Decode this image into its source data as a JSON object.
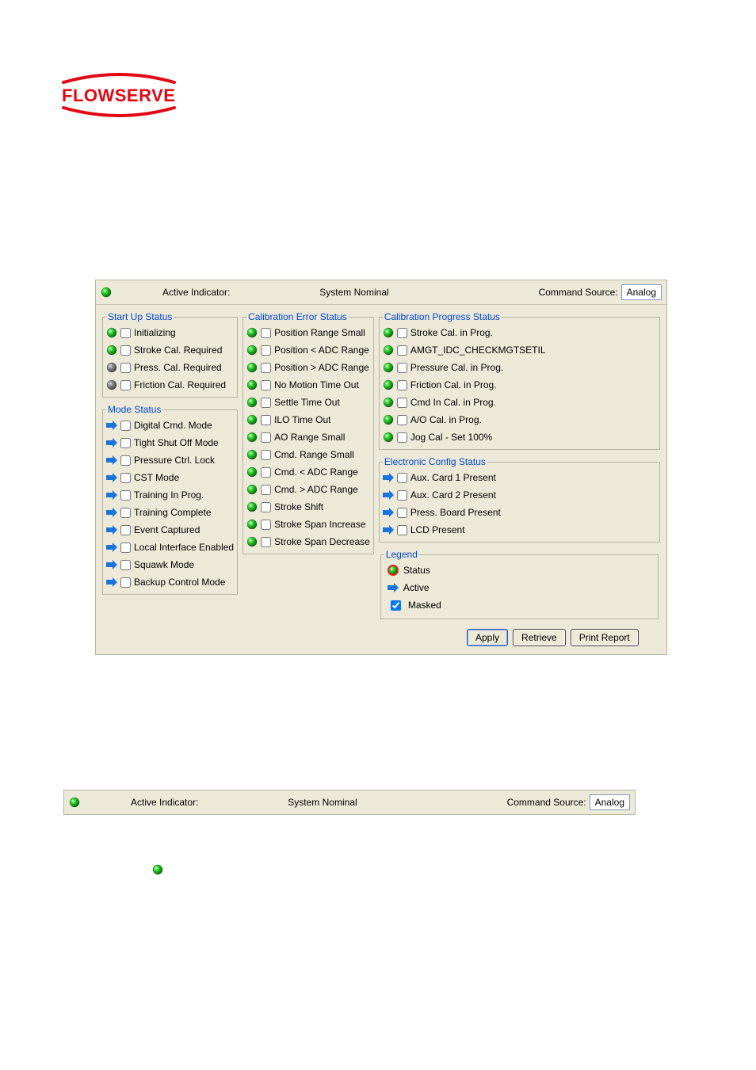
{
  "colors": {
    "panel_bg": "#ece9d8",
    "panel_border": "#b5b5a5",
    "group_title": "#0046d5",
    "led_green": "#2fd12f",
    "led_green_core": "#9bff9b",
    "led_red": "#e02020",
    "led_red_core": "#ff9b9b",
    "led_gray": "#8a8a8a",
    "led_gray_core": "#d0d0d0",
    "arrow_blue": "#1b74d8",
    "input_border": "#7f9db9",
    "brand_red": "#e30613"
  },
  "logo_text": "FLOWSERVE",
  "header": {
    "lead_led_color": "green",
    "active_indicator_label": "Active Indicator:",
    "active_indicator_value": "System Nominal",
    "command_source_label": "Command Source:",
    "command_source_value": "Analog"
  },
  "groups": {
    "startup": {
      "title": "Start Up Status",
      "items": [
        {
          "icon": "led",
          "color": "green",
          "checked": false,
          "label": "Initializing"
        },
        {
          "icon": "led",
          "color": "green",
          "checked": false,
          "label": "Stroke Cal. Required"
        },
        {
          "icon": "led",
          "color": "gray",
          "checked": false,
          "label": "Press. Cal. Required"
        },
        {
          "icon": "led",
          "color": "gray",
          "checked": false,
          "label": "Friction Cal. Required"
        }
      ]
    },
    "mode": {
      "title": "Mode Status",
      "items": [
        {
          "icon": "arrow",
          "checked": false,
          "label": "Digital Cmd. Mode"
        },
        {
          "icon": "arrow",
          "checked": false,
          "label": "Tight Shut Off Mode"
        },
        {
          "icon": "arrow",
          "checked": false,
          "label": "Pressure Ctrl. Lock"
        },
        {
          "icon": "arrow",
          "checked": false,
          "label": "CST Mode"
        },
        {
          "icon": "arrow",
          "checked": false,
          "label": "Training In Prog."
        },
        {
          "icon": "arrow",
          "checked": false,
          "label": "Training Complete"
        },
        {
          "icon": "arrow",
          "checked": false,
          "label": "Event Captured"
        },
        {
          "icon": "arrow",
          "checked": false,
          "label": "Local Interface Enabled"
        },
        {
          "icon": "arrow",
          "checked": false,
          "label": "Squawk Mode"
        },
        {
          "icon": "arrow",
          "checked": false,
          "label": "Backup Control Mode"
        }
      ]
    },
    "cal_error": {
      "title": "Calibration Error Status",
      "items": [
        {
          "icon": "led",
          "color": "green",
          "checked": false,
          "label": "Position Range Small"
        },
        {
          "icon": "led",
          "color": "green",
          "checked": false,
          "label": "Position < ADC Range"
        },
        {
          "icon": "led",
          "color": "green",
          "checked": false,
          "label": "Position > ADC Range"
        },
        {
          "icon": "led",
          "color": "green",
          "checked": false,
          "label": "No Motion Time Out"
        },
        {
          "icon": "led",
          "color": "green",
          "checked": false,
          "label": "Settle Time Out"
        },
        {
          "icon": "led",
          "color": "green",
          "checked": false,
          "label": "ILO Time Out"
        },
        {
          "icon": "led",
          "color": "green",
          "checked": false,
          "label": "AO Range Small"
        },
        {
          "icon": "led",
          "color": "green",
          "checked": false,
          "label": "Cmd. Range Small"
        },
        {
          "icon": "led",
          "color": "green",
          "checked": false,
          "label": "Cmd. < ADC Range"
        },
        {
          "icon": "led",
          "color": "green",
          "checked": false,
          "label": "Cmd. > ADC Range"
        },
        {
          "icon": "led",
          "color": "green",
          "checked": false,
          "label": "Stroke Shift"
        },
        {
          "icon": "led",
          "color": "green",
          "checked": false,
          "label": "Stroke Span Increase"
        },
        {
          "icon": "led",
          "color": "green",
          "checked": false,
          "label": "Stroke Span Decrease"
        }
      ]
    },
    "cal_progress": {
      "title": "Calibration Progress Status",
      "items": [
        {
          "icon": "led",
          "color": "green",
          "checked": false,
          "label": "Stroke Cal. in Prog."
        },
        {
          "icon": "led",
          "color": "green",
          "checked": false,
          "label": "AMGT_IDC_CHECKMGTSETIL"
        },
        {
          "icon": "led",
          "color": "green",
          "checked": false,
          "label": "Pressure Cal. in Prog."
        },
        {
          "icon": "led",
          "color": "green",
          "checked": false,
          "label": "Friction Cal. in Prog."
        },
        {
          "icon": "led",
          "color": "green",
          "checked": false,
          "label": "Cmd In Cal. in Prog."
        },
        {
          "icon": "led",
          "color": "green",
          "checked": false,
          "label": "A/O Cal. in Prog."
        },
        {
          "icon": "led",
          "color": "green",
          "checked": false,
          "label": "Jog Cal - Set 100%"
        }
      ]
    },
    "econfig": {
      "title": "Electronic Config Status",
      "items": [
        {
          "icon": "arrow",
          "checked": false,
          "label": "Aux. Card 1 Present"
        },
        {
          "icon": "arrow",
          "checked": false,
          "label": "Aux. Card 2 Present"
        },
        {
          "icon": "arrow",
          "checked": false,
          "label": "Press. Board Present"
        },
        {
          "icon": "arrow",
          "checked": false,
          "label": "LCD Present"
        }
      ]
    }
  },
  "legend": {
    "title": "Legend",
    "status_label": "Status",
    "active_label": "Active",
    "masked_label": "Masked",
    "masked_checked": true
  },
  "buttons": {
    "apply": "Apply",
    "retrieve": "Retrieve",
    "print_report": "Print Report"
  }
}
